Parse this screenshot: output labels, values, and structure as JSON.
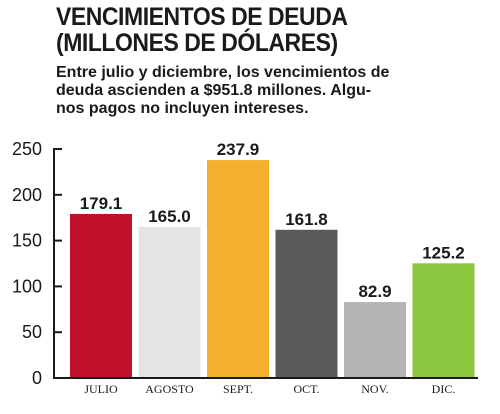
{
  "header": {
    "title_line1": "VENCIMIENTOS DE DEUDA",
    "title_line2": "(MILLONES DE DÓLARES)",
    "subtitle_line1": "Entre julio y diciembre, los vencimientos de",
    "subtitle_line2": "deuda ascienden a $951.8 millones. Algu-",
    "subtitle_line3": "nos pagos no incluyen intereses."
  },
  "chart_data": {
    "type": "bar",
    "title": "VENCIMIENTOS DE DEUDA (MILLONES DE DÓLARES)",
    "categories": [
      "JULIO",
      "AGOSTO",
      "SEPT.",
      "OCT.",
      "NOV.",
      "DIC."
    ],
    "values": [
      179.1,
      165.0,
      237.9,
      161.8,
      82.9,
      125.2
    ],
    "value_labels": [
      "179.1",
      "165.0",
      "237.9",
      "161.8",
      "82.9",
      "125.2"
    ],
    "colors": [
      "#c0102a",
      "#e4e4e4",
      "#f4b02c",
      "#5a5a5a",
      "#b4b4b4",
      "#8dc63f"
    ],
    "ylim": [
      0,
      250
    ],
    "yticks": [
      0,
      50,
      100,
      150,
      200,
      250
    ],
    "grid": false,
    "xlabel": "",
    "ylabel": ""
  }
}
